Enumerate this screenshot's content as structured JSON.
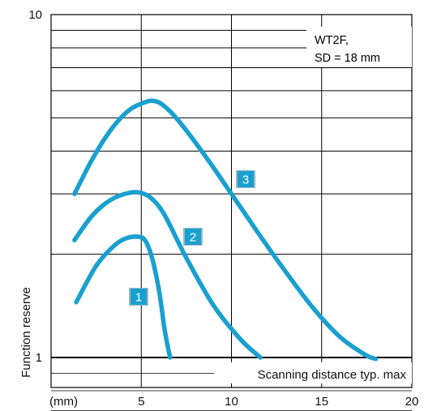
{
  "chart_data": {
    "type": "line",
    "ylabel": "Function  reserve",
    "xlabel": "Scanning distance typ. max",
    "x_unit": "(mm)",
    "xlim": [
      0,
      20
    ],
    "ylim": [
      0.6,
      10
    ],
    "yscale": "log",
    "x_ticks": [
      "5",
      "10",
      "15",
      "20"
    ],
    "y_ticks": [
      "1",
      "10"
    ],
    "grid": true,
    "annotation": [
      "WT2F,",
      "SD = 18 mm"
    ],
    "series": [
      {
        "label": "1",
        "x": [
          1.4,
          2.5,
          3.5,
          4.2,
          4.8,
          5.2,
          5.6,
          6.0,
          6.3,
          6.6
        ],
        "y": [
          1.45,
          1.85,
          2.12,
          2.23,
          2.25,
          2.2,
          1.95,
          1.55,
          1.2,
          1.0
        ]
      },
      {
        "label": "2",
        "x": [
          1.3,
          2.3,
          3.3,
          4.3,
          5.0,
          5.6,
          6.3,
          7.5,
          9.0,
          10.5,
          11.6
        ],
        "y": [
          2.2,
          2.6,
          2.88,
          3.02,
          3.02,
          2.9,
          2.6,
          1.95,
          1.42,
          1.13,
          1.0
        ]
      },
      {
        "label": "3",
        "x": [
          1.3,
          2.3,
          3.3,
          4.3,
          5.2,
          5.7,
          6.2,
          7.0,
          8.5,
          10.0,
          11.5,
          13.0,
          14.5,
          16.0,
          17.4,
          18.0
        ],
        "y": [
          3.0,
          3.8,
          4.6,
          5.25,
          5.55,
          5.6,
          5.45,
          4.95,
          3.9,
          3.0,
          2.3,
          1.78,
          1.4,
          1.15,
          1.02,
          0.99
        ]
      }
    ],
    "colors": {
      "line": "#1aa0cf",
      "badge": "#1aa0cf",
      "grid": "#000000"
    }
  }
}
